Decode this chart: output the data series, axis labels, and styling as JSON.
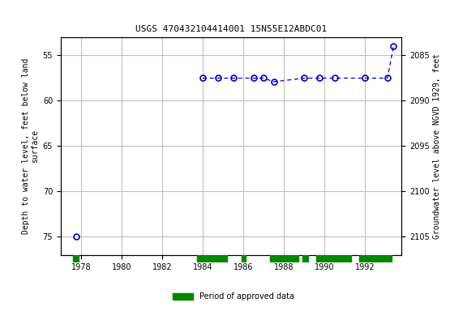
{
  "title": "USGS 470432104414001 15N55E12ABDC01",
  "ylabel_left": "Depth to water level, feet below land\nsurface",
  "ylabel_right": "Groundwater level above NGVD 1929, feet",
  "xlim": [
    1977.0,
    1993.8
  ],
  "ylim_left": [
    53.0,
    77.0
  ],
  "ylim_right": [
    2083.0,
    2107.0
  ],
  "yticks_left": [
    55,
    60,
    65,
    70,
    75
  ],
  "yticks_right": [
    2085,
    2090,
    2095,
    2100,
    2105
  ],
  "xticks": [
    1978,
    1980,
    1982,
    1984,
    1986,
    1988,
    1990,
    1992
  ],
  "segments": [
    {
      "x": [
        1977.75
      ],
      "y": [
        75.0
      ]
    },
    {
      "x": [
        1984.0,
        1984.75,
        1985.5,
        1986.5,
        1987.0,
        1987.5,
        1989.0,
        1989.75,
        1990.5,
        1992.0,
        1993.1,
        1993.4
      ],
      "y": [
        57.5,
        57.5,
        57.5,
        57.5,
        57.5,
        57.9,
        57.5,
        57.5,
        57.5,
        57.5,
        57.5,
        54.0
      ]
    }
  ],
  "marker_color": "#0000cc",
  "line_color": "#0000cc",
  "background_color": "#ffffff",
  "grid_color": "#c0c0c0",
  "approved_periods": [
    [
      1977.6,
      1977.9
    ],
    [
      1983.7,
      1985.2
    ],
    [
      1985.9,
      1986.1
    ],
    [
      1987.3,
      1988.7
    ],
    [
      1988.9,
      1989.2
    ],
    [
      1989.6,
      1991.3
    ],
    [
      1991.7,
      1993.3
    ]
  ],
  "approved_color": "#008800",
  "legend_label": "Period of approved data",
  "title_fontsize": 8,
  "axis_fontsize": 7,
  "tick_fontsize": 7
}
